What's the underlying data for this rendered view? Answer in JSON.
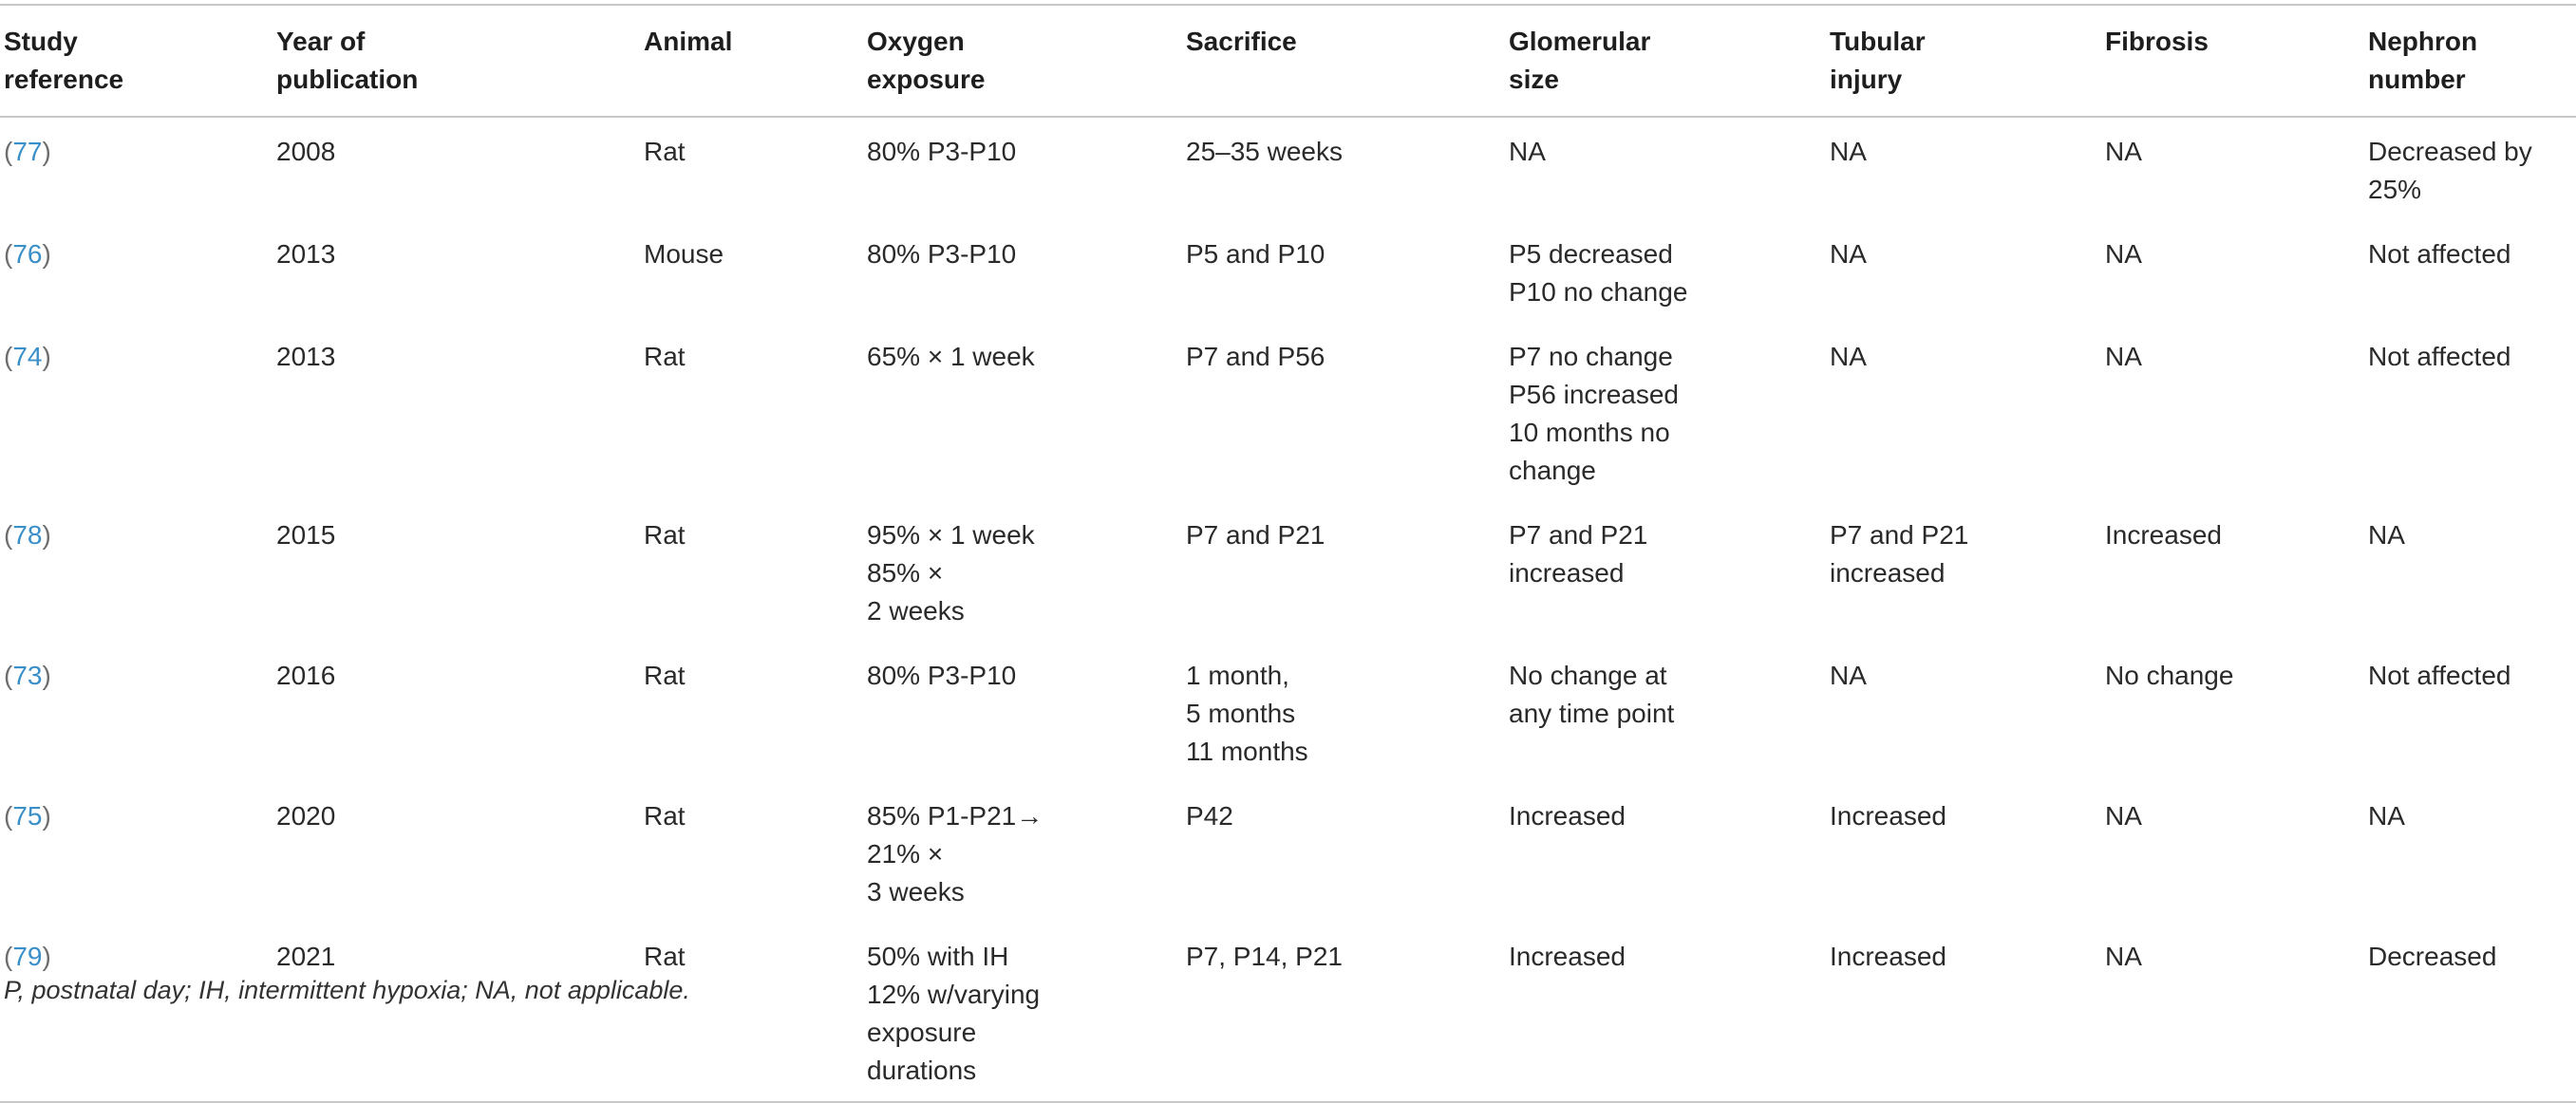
{
  "table": {
    "headers": [
      [
        "Study",
        "reference"
      ],
      [
        "Year of",
        "publication"
      ],
      [
        "Animal"
      ],
      [
        "Oxygen",
        "exposure"
      ],
      [
        "Sacrifice"
      ],
      [
        "Glomerular",
        "size"
      ],
      [
        "Tubular",
        "injury"
      ],
      [
        "Fibrosis"
      ],
      [
        "Nephron",
        "number"
      ]
    ],
    "rows": [
      {
        "ref": "77",
        "cells": [
          [
            "2008"
          ],
          [
            "Rat"
          ],
          [
            "80% P3-P10"
          ],
          [
            "25–35 weeks"
          ],
          [
            "NA"
          ],
          [
            "NA"
          ],
          [
            "NA"
          ],
          [
            "Decreased by",
            "25%"
          ]
        ]
      },
      {
        "ref": "76",
        "cells": [
          [
            "2013"
          ],
          [
            "Mouse"
          ],
          [
            "80% P3-P10"
          ],
          [
            "P5 and P10"
          ],
          [
            "P5 decreased",
            "P10 no change"
          ],
          [
            "NA"
          ],
          [
            "NA"
          ],
          [
            "Not affected"
          ]
        ]
      },
      {
        "ref": "74",
        "cells": [
          [
            "2013"
          ],
          [
            "Rat"
          ],
          [
            "65% × 1 week"
          ],
          [
            "P7 and P56"
          ],
          [
            "P7 no change",
            "P56 increased",
            "10 months no",
            "change"
          ],
          [
            "NA"
          ],
          [
            "NA"
          ],
          [
            "Not affected"
          ]
        ]
      },
      {
        "ref": "78",
        "cells": [
          [
            "2015"
          ],
          [
            "Rat"
          ],
          [
            "95% × 1 week",
            "85% ×",
            "2 weeks"
          ],
          [
            "P7 and P21"
          ],
          [
            "P7 and P21",
            "increased"
          ],
          [
            "P7 and P21",
            "increased"
          ],
          [
            "Increased"
          ],
          [
            "NA"
          ]
        ]
      },
      {
        "ref": "73",
        "cells": [
          [
            "2016"
          ],
          [
            "Rat"
          ],
          [
            "80% P3-P10"
          ],
          [
            "1 month,",
            "5 months",
            "11 months"
          ],
          [
            "No change at",
            "any time point"
          ],
          [
            "NA"
          ],
          [
            "No change"
          ],
          [
            "Not affected"
          ]
        ]
      },
      {
        "ref": "75",
        "cells": [
          [
            "2020"
          ],
          [
            "Rat"
          ],
          [
            "85% P1-P21→",
            "21% ×",
            "3 weeks"
          ],
          [
            "P42"
          ],
          [
            "Increased"
          ],
          [
            "Increased"
          ],
          [
            "NA"
          ],
          [
            "NA"
          ]
        ]
      },
      {
        "ref": "79",
        "cells": [
          [
            "2021"
          ],
          [
            "Rat"
          ],
          [
            "50% with IH",
            "12% w/varying",
            "exposure",
            "durations"
          ],
          [
            "P7, P14, P21"
          ],
          [
            "Increased"
          ],
          [
            "Increased"
          ],
          [
            "NA"
          ],
          [
            "Decreased"
          ]
        ]
      }
    ]
  },
  "footnote": "P, postnatal day; IH, intermittent hypoxia; NA, not applicable.",
  "colors": {
    "rule": "#c8c8c8",
    "reference_link": "#3a8fc9",
    "reference_paren": "#6e6e6e"
  }
}
